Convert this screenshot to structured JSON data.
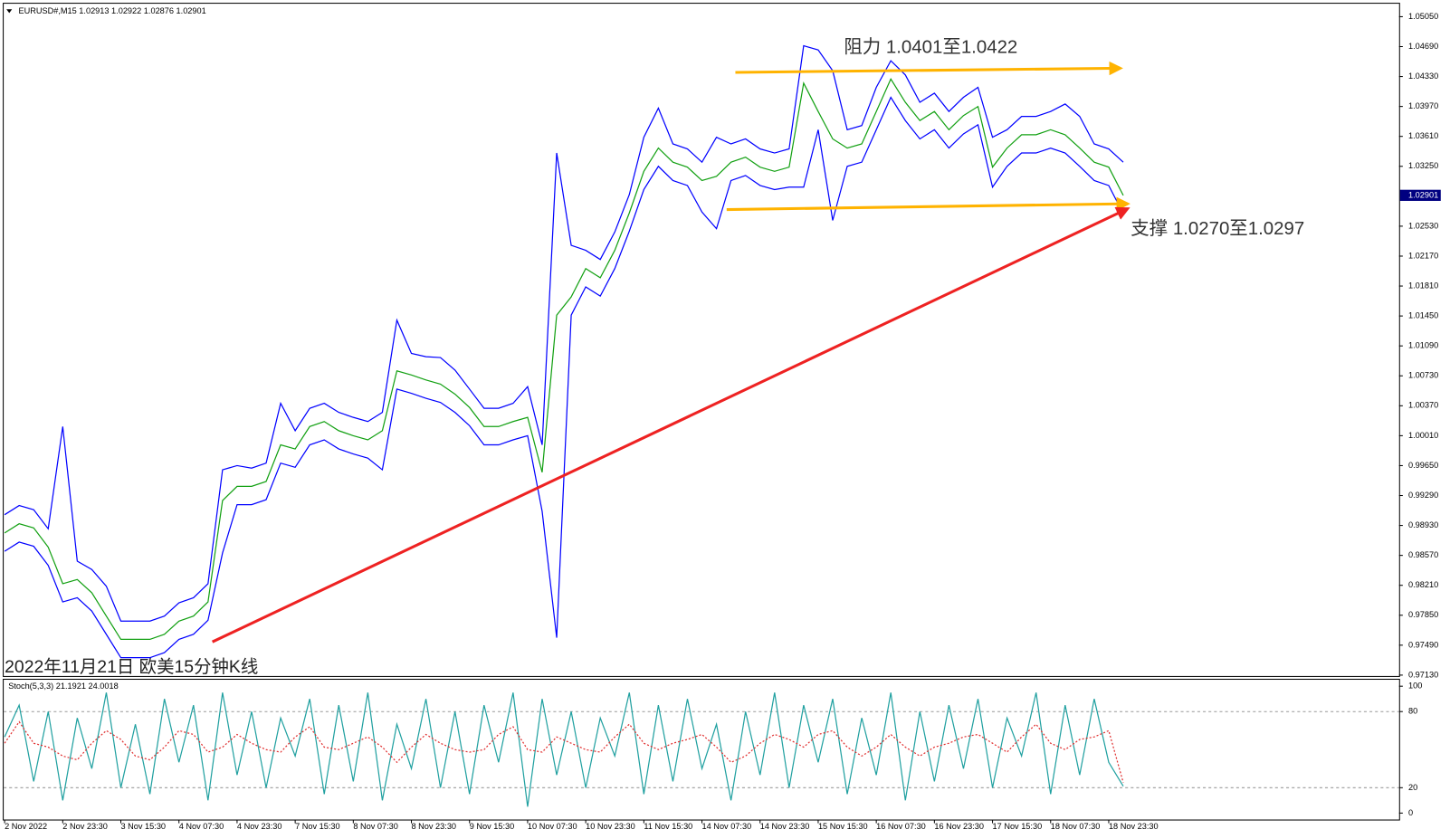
{
  "chart_data": [
    {
      "type": "line",
      "title": "EURUSD#,M15  1.02913 1.02922 1.02876 1.02901",
      "current_price": 1.02901,
      "categories": [
        "2 Nov 2022",
        null,
        null,
        null,
        "2 Nov 23:30",
        null,
        null,
        null,
        "3 Nov 15:30",
        null,
        null,
        null,
        "4 Nov 07:30",
        null,
        null,
        null,
        "4 Nov 23:30",
        null,
        null,
        null,
        "7 Nov 15:30",
        null,
        null,
        null,
        "8 Nov 07:30",
        null,
        null,
        null,
        "8 Nov 23:30",
        null,
        null,
        null,
        "9 Nov 15:30",
        null,
        null,
        null,
        "10 Nov 07:30",
        null,
        null,
        null,
        "10 Nov 23:30",
        null,
        null,
        null,
        "11 Nov 15:30",
        null,
        null,
        null,
        "14 Nov 07:30",
        null,
        null,
        null,
        "14 Nov 23:30",
        null,
        null,
        null,
        "15 Nov 15:30",
        null,
        null,
        null,
        "16 Nov 07:30",
        null,
        null,
        null,
        "16 Nov 23:30",
        null,
        null,
        null,
        "17 Nov 15:30",
        null,
        null,
        null,
        "18 Nov 07:30",
        null,
        null,
        null,
        "18 Nov 23:30",
        null
      ],
      "series": [
        {
          "color": "#0000ff",
          "values": [
            0.9906,
            0.9917,
            0.9912,
            0.9889,
            1.0012,
            0.985,
            0.984,
            0.982,
            0.9778,
            0.9778,
            0.9778,
            0.9784,
            0.98,
            0.9806,
            0.9823,
            0.996,
            0.9965,
            0.9962,
            0.9968,
            1.004,
            1.0007,
            1.0034,
            1.004,
            1.0029,
            1.0023,
            1.0018,
            1.0029,
            1.014,
            1.01,
            1.0096,
            1.0095,
            1.008,
            1.0057,
            1.0034,
            1.0034,
            1.004,
            1.006,
            0.999,
            1.0341,
            1.023,
            1.0224,
            1.0213,
            1.0246,
            1.0291,
            1.036,
            1.0395,
            1.0352,
            1.0346,
            1.033,
            1.036,
            1.0352,
            1.0358,
            1.0346,
            1.0341,
            1.0346,
            1.047,
            1.0465,
            1.044,
            1.0369,
            1.0374,
            1.042,
            1.0452,
            1.0435,
            1.0402,
            1.0413,
            1.0391,
            1.0408,
            1.042,
            1.036,
            1.0369,
            1.0385,
            1.0385,
            1.0391,
            1.04,
            1.0385,
            1.0352,
            1.0346,
            1.033
          ]
        },
        {
          "color": "#0000ff",
          "values": [
            0.9862,
            0.9873,
            0.9868,
            0.9845,
            0.9801,
            0.9806,
            0.979,
            0.9762,
            0.9734,
            0.9734,
            0.9734,
            0.974,
            0.9756,
            0.9762,
            0.9779,
            0.986,
            0.9918,
            0.9918,
            0.9924,
            0.9968,
            0.9963,
            0.999,
            0.9996,
            0.9985,
            0.9979,
            0.9974,
            0.996,
            1.0057,
            1.0052,
            1.0046,
            1.0041,
            1.0029,
            1.0013,
            0.999,
            0.999,
            0.9996,
            1.0001,
            0.991,
            0.9758,
            1.0146,
            1.018,
            1.0169,
            1.0202,
            1.0247,
            1.0297,
            1.0325,
            1.0308,
            1.0302,
            1.027,
            1.025,
            1.0308,
            1.0314,
            1.0302,
            1.0297,
            1.03,
            1.03,
            1.0369,
            1.026,
            1.0325,
            1.033,
            1.0369,
            1.0408,
            1.038,
            1.0358,
            1.0369,
            1.0347,
            1.0364,
            1.0375,
            1.03,
            1.0325,
            1.0341,
            1.0341,
            1.0347,
            1.0341,
            1.0325,
            1.0308,
            1.0302,
            1.0268
          ]
        },
        {
          "color": "#12a012",
          "values": [
            0.9884,
            0.9895,
            0.989,
            0.9867,
            0.9823,
            0.9828,
            0.9812,
            0.9784,
            0.9756,
            0.9756,
            0.9756,
            0.9762,
            0.9778,
            0.9784,
            0.9801,
            0.9923,
            0.994,
            0.994,
            0.9946,
            0.999,
            0.9985,
            1.0012,
            1.0018,
            1.0007,
            1.0001,
            0.9996,
            1.0007,
            1.0079,
            1.0074,
            1.0068,
            1.0063,
            1.0051,
            1.0035,
            1.0012,
            1.0012,
            1.0018,
            1.0023,
            0.9957,
            1.0146,
            1.0168,
            1.0202,
            1.0191,
            1.0224,
            1.0269,
            1.0319,
            1.0347,
            1.033,
            1.0324,
            1.0308,
            1.0313,
            1.033,
            1.0336,
            1.0324,
            1.0319,
            1.0324,
            1.0425,
            1.0391,
            1.0358,
            1.0347,
            1.0352,
            1.0391,
            1.043,
            1.0402,
            1.038,
            1.0391,
            1.0369,
            1.0386,
            1.0397,
            1.0324,
            1.0347,
            1.0363,
            1.0363,
            1.0369,
            1.0363,
            1.0347,
            1.033,
            1.0324,
            1.029
          ]
        }
      ],
      "trend_lines": [
        {
          "color": "#ffb300",
          "x": [
            50.3,
            76.8
          ],
          "y": [
            1.0438,
            1.0443
          ]
        },
        {
          "color": "#ffb300",
          "x": [
            49.7,
            77.3
          ],
          "y": [
            1.0273,
            1.028
          ]
        },
        {
          "color": "#ee2222",
          "x": [
            14.3,
            77.3
          ],
          "y": [
            0.9753,
            1.0274
          ]
        }
      ],
      "annotations": [
        "阻力 1.0401至1.0422",
        "支撑 1.0270至1.0297",
        "2022年11月21日 欧美15分钟K线"
      ],
      "ylim": [
        0.97108,
        1.05195
      ],
      "yticks": [
        {
          "value": 1.0505,
          "label": "1.05050"
        },
        {
          "value": 1.0469,
          "label": "1.04690"
        },
        {
          "value": 1.0433,
          "label": "1.04330"
        },
        {
          "value": 1.0397,
          "label": "1.03970"
        },
        {
          "value": 1.0361,
          "label": "1.03610"
        },
        {
          "value": 1.0325,
          "label": "1.03250"
        },
        {
          "value": 1.0253,
          "label": "1.02530"
        },
        {
          "value": 1.0217,
          "label": "1.02170"
        },
        {
          "value": 1.0181,
          "label": "1.01810"
        },
        {
          "value": 1.0145,
          "label": "1.01450"
        },
        {
          "value": 1.0109,
          "label": "1.01090"
        },
        {
          "value": 1.0073,
          "label": "1.00730"
        },
        {
          "value": 1.0037,
          "label": "1.00370"
        },
        {
          "value": 1.0001,
          "label": "1.00010"
        },
        {
          "value": 0.9965,
          "label": "0.99650"
        },
        {
          "value": 0.9929,
          "label": "0.99290"
        },
        {
          "value": 0.9893,
          "label": "0.98930"
        },
        {
          "value": 0.9857,
          "label": "0.98570"
        },
        {
          "value": 0.9821,
          "label": "0.98210"
        },
        {
          "value": 0.9785,
          "label": "0.97850"
        },
        {
          "value": 0.9749,
          "label": "0.97490"
        },
        {
          "value": 0.9713,
          "label": "0.97130"
        }
      ]
    },
    {
      "type": "line",
      "title": "Stoch(5,3,3) 21.1921 24.0018",
      "series": [
        {
          "color": "#20a0a0",
          "values": [
            60,
            85,
            25,
            80,
            10,
            75,
            35,
            95,
            20,
            70,
            15,
            90,
            40,
            85,
            10,
            95,
            30,
            80,
            20,
            75,
            45,
            90,
            15,
            85,
            25,
            95,
            10,
            70,
            35,
            90,
            20,
            80,
            15,
            85,
            40,
            95,
            5,
            90,
            30,
            80,
            20,
            75,
            45,
            95,
            15,
            85,
            25,
            90,
            35,
            70,
            10,
            80,
            30,
            95,
            20,
            85,
            40,
            90,
            15,
            75,
            30,
            95,
            10,
            80,
            25,
            85,
            35,
            90,
            20,
            75,
            45,
            95,
            15,
            85,
            30,
            90,
            40,
            21.19
          ]
        },
        {
          "color": "#e03030",
          "dashed": true,
          "values": [
            55,
            72,
            55,
            52,
            45,
            42,
            55,
            65,
            58,
            45,
            42,
            52,
            65,
            62,
            48,
            52,
            62,
            55,
            50,
            48,
            60,
            68,
            52,
            50,
            55,
            60,
            52,
            40,
            52,
            62,
            55,
            50,
            48,
            50,
            62,
            68,
            50,
            48,
            60,
            55,
            50,
            48,
            60,
            70,
            55,
            50,
            55,
            58,
            62,
            52,
            40,
            45,
            55,
            62,
            58,
            52,
            62,
            65,
            52,
            45,
            52,
            62,
            52,
            45,
            52,
            55,
            60,
            62,
            55,
            48,
            60,
            70,
            55,
            50,
            58,
            60,
            65,
            24.0
          ]
        }
      ],
      "levels": [
        80,
        20
      ],
      "ylim": [
        0,
        100
      ],
      "yticks": [
        100,
        80,
        20,
        0
      ]
    }
  ]
}
